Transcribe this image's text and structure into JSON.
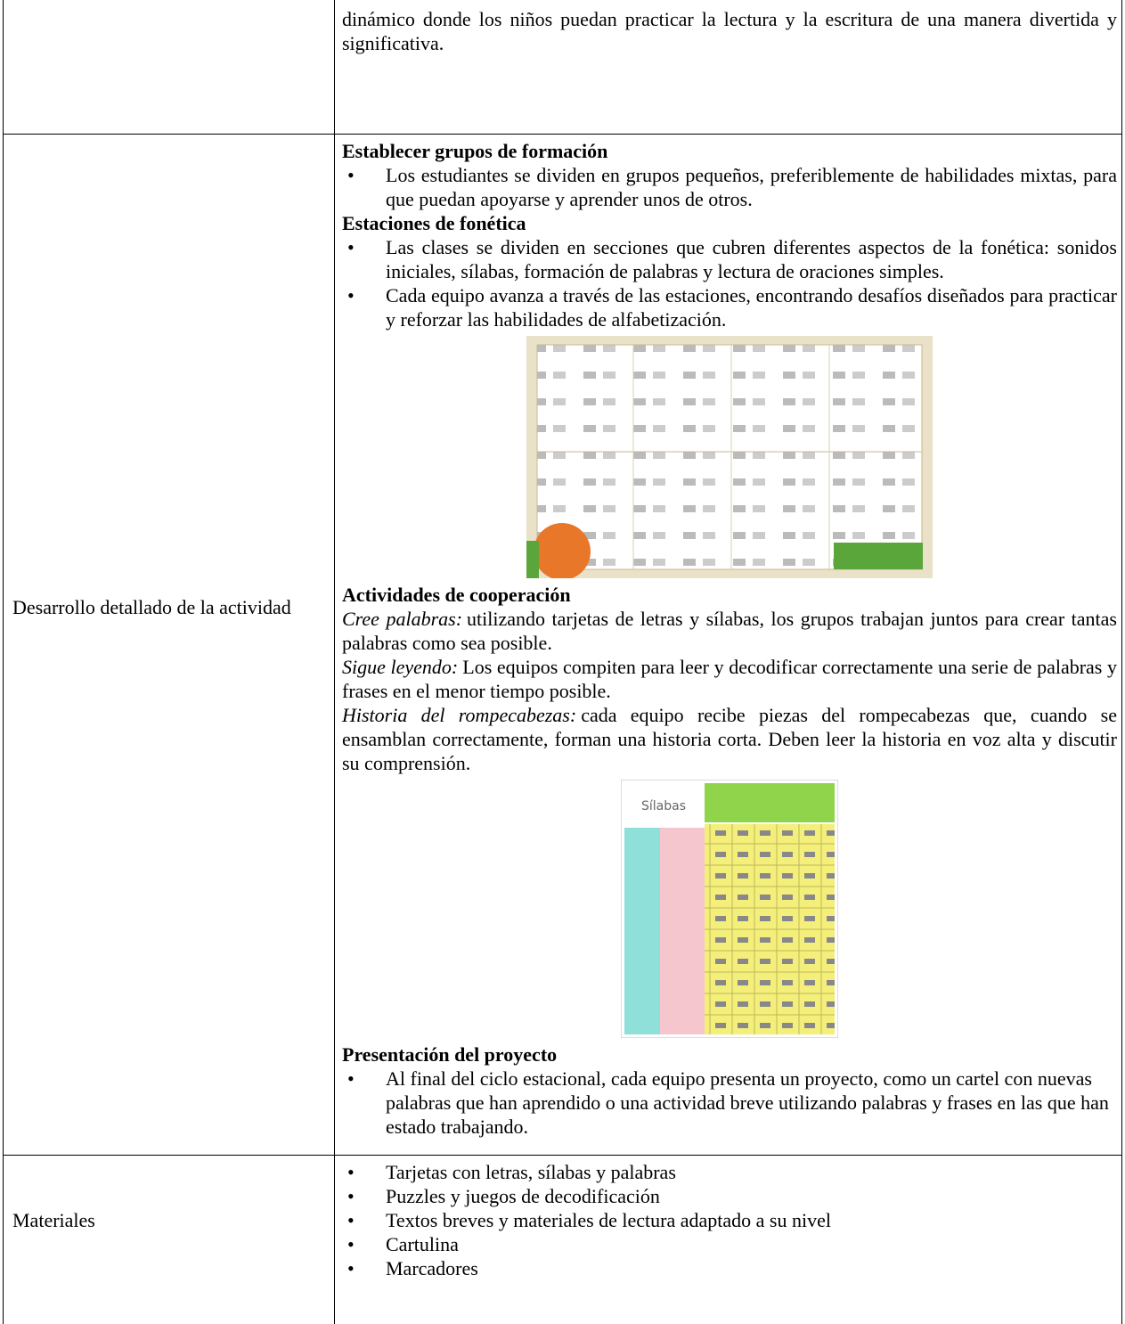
{
  "table": {
    "rows": [
      {
        "content": "dinámico donde los niños puedan practicar la lectura y la escritura de una manera divertida y significativa."
      },
      {
        "label": "Desarrollo detallado de la actividad",
        "sections": [
          {
            "heading": "Establecer grupos de formación",
            "bullets": [
              "Los estudiantes se dividen en grupos pequeños, preferiblemente de habilidades mixtas, para que puedan apoyarse y aprender unos de otros."
            ]
          },
          {
            "heading": "Estaciones de fonética",
            "bullets": [
              "Las clases se dividen en secciones que cubren diferentes aspectos de la fonética: sonidos iniciales, sílabas, formación de palabras y lectura de oraciones simples.",
              "Cada equipo avanza a través de las estaciones, encontrando desafíos diseñados para practicar y reforzar las habilidades de alfabetización."
            ]
          },
          {
            "heading": "Actividades de cooperación",
            "items": [
              {
                "term": "Cree palabras:",
                "text": "utilizando tarjetas de letras y sílabas, los grupos trabajan juntos para crear tantas palabras como sea posible."
              },
              {
                "term": "Sigue leyendo:",
                "text": "Los equipos compiten para leer y decodificar correctamente una serie de palabras y frases en el menor tiempo posible."
              },
              {
                "term": "Historia del rompecabezas:",
                "text": "cada equipo recibe piezas del rompecabezas que, cuando se ensamblan correctamente, forman una historia corta. Deben leer la historia en voz alta y discutir su comprensión."
              }
            ],
            "image_label": "Sílabas"
          },
          {
            "heading": "Presentación del proyecto",
            "bullets": [
              "Al final del ciclo estacional, cada equipo presenta un proyecto, como un cartel con nuevas palabras que han aprendido o una actividad breve utilizando palabras y frases en las que han estado trabajando."
            ]
          }
        ]
      },
      {
        "label": "Materiales",
        "bullets": [
          "Tarjetas con letras, sílabas y palabras",
          "Puzzles y juegos de decodificación",
          "Textos breves y materiales de lectura adaptado a su nivel",
          "Cartulina",
          "Marcadores"
        ]
      }
    ]
  }
}
